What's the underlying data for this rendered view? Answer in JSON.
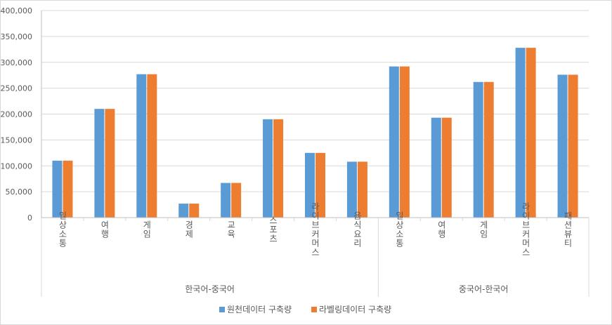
{
  "chart_data": {
    "type": "bar",
    "title": "",
    "xlabel": "",
    "ylabel": "",
    "ylim": [
      0,
      400000
    ],
    "y_ticks": [
      "0",
      "50,000",
      "100,000",
      "150,000",
      "200,000",
      "250,000",
      "300,000",
      "350,000",
      "400,000"
    ],
    "grid": true,
    "legend_position": "bottom",
    "groups": [
      {
        "label": "한국어-중국어",
        "categories": [
          "일상소통",
          "여행",
          "게임",
          "경제",
          "교육",
          "스포츠",
          "라이브커머스",
          "음식요리"
        ]
      },
      {
        "label": "중국어-한국어",
        "categories": [
          "일상소통",
          "여행",
          "게임",
          "라이브커머스",
          "패션뷰티"
        ]
      }
    ],
    "categories": [
      "일상소통",
      "여행",
      "게임",
      "경제",
      "교육",
      "스포츠",
      "라이브커머스",
      "음식요리",
      "일상소통",
      "여행",
      "게임",
      "라이브커머스",
      "패션뷰티"
    ],
    "series": [
      {
        "name": "원천데이터 구축량",
        "color": "#5b9bd5",
        "values": [
          110000,
          210000,
          277000,
          27000,
          67000,
          190000,
          125000,
          108000,
          292000,
          193000,
          262000,
          328000,
          276000
        ]
      },
      {
        "name": "라벨링데이터 구축량",
        "color": "#ed7d31",
        "values": [
          110000,
          210000,
          277000,
          27000,
          67000,
          190000,
          125000,
          108000,
          292000,
          193000,
          262000,
          328000,
          276000
        ]
      }
    ]
  }
}
